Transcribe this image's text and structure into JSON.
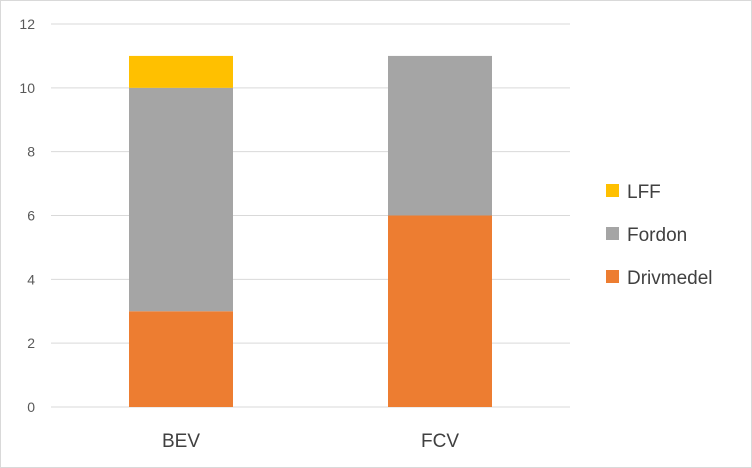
{
  "chart_data": {
    "type": "bar",
    "stacked": true,
    "categories": [
      "BEV",
      "FCV"
    ],
    "series": [
      {
        "name": "Drivmedel",
        "values": [
          3,
          6
        ],
        "color": "#ED7D31"
      },
      {
        "name": "Fordon",
        "values": [
          7,
          5
        ],
        "color": "#A5A5A5"
      },
      {
        "name": "LFF",
        "values": [
          1,
          0
        ],
        "color": "#FFC000"
      }
    ],
    "ylim": [
      0,
      12
    ],
    "yticks": [
      "0",
      "2",
      "4",
      "6",
      "8",
      "10",
      "12"
    ],
    "grid": true,
    "legend": "right",
    "gridline_color": "#d9d9d9"
  }
}
